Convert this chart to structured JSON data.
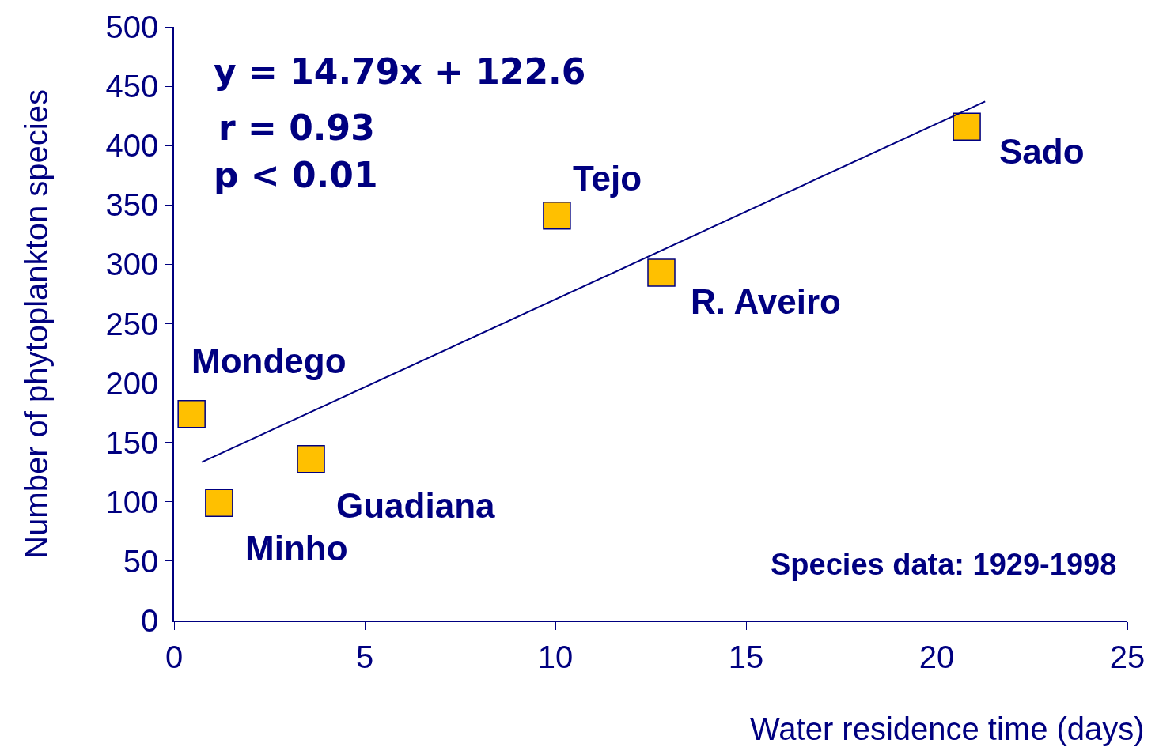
{
  "chart_data": {
    "type": "scatter",
    "xlabel": "Water residence time (days)",
    "ylabel": "Number of phytoplankton species",
    "series": [
      {
        "marker": "square",
        "color": "#ffc000",
        "x": [
          0.46,
          1.18,
          3.59,
          10.04,
          12.78,
          20.79
        ],
        "values": [
          174,
          99,
          136,
          341,
          293,
          416
        ]
      },
      {
        "type": "line",
        "color": "#000080",
        "x": [
          0.73,
          21.27
        ],
        "values": [
          133.4,
          437.2
        ]
      }
    ],
    "xlim": [
      0,
      25
    ],
    "xticks": [
      0,
      5,
      10,
      15,
      20,
      25
    ],
    "ylim": [
      0,
      500
    ],
    "yticks": [
      0,
      50,
      100,
      150,
      200,
      250,
      300,
      350,
      400,
      450,
      500
    ],
    "line_style": "solid",
    "annotations": [
      "y = 14.79x + 122.6",
      "r = 0.93",
      "p < 0.01",
      "Species data: 1929-1998",
      {
        "text": "Mondego",
        "x": 0.46,
        "y": 174
      },
      {
        "text": "Minho",
        "x": 1.18,
        "y": 99
      },
      {
        "text": "Guadiana",
        "x": 3.59,
        "y": 136
      },
      {
        "text": "Tejo",
        "x": 10.04,
        "y": 341
      },
      {
        "text": "R. Aveiro",
        "x": 12.78,
        "y": 293
      },
      {
        "text": "Sado",
        "x": 20.79,
        "y": 416
      }
    ]
  }
}
